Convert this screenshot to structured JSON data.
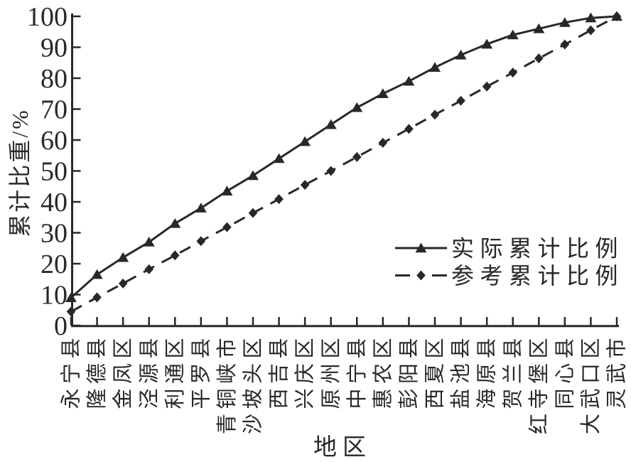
{
  "figure": {
    "background": "#ffffff",
    "ink": "#282828"
  },
  "chart_data": {
    "type": "line",
    "title": "",
    "xlabel": "地区",
    "ylabel": "累计比重/%",
    "ylim": [
      0,
      100
    ],
    "yticks": [
      0,
      10,
      20,
      30,
      40,
      50,
      60,
      70,
      80,
      90,
      100
    ],
    "grid": false,
    "legend_position": "inside-right-middle",
    "categories": [
      "永宁县",
      "隆德县",
      "金凤区",
      "泾源县",
      "利通区",
      "平罗县",
      "青铜峡市",
      "沙坡头区",
      "西吉县",
      "兴庆区",
      "原州区",
      "中宁县",
      "惠农区",
      "彭阳县",
      "西夏区",
      "盐池县",
      "海原县",
      "贺兰县",
      "红寺堡区",
      "同心县",
      "大武口区",
      "灵武市"
    ],
    "series": [
      {
        "name": "实际累计比例",
        "marker": "triangle",
        "line_style": "solid",
        "values": [
          9,
          16.5,
          22,
          27,
          33,
          38,
          43.5,
          48.5,
          54,
          59.5,
          65,
          70.5,
          75,
          79,
          83.5,
          87.5,
          91,
          94,
          96,
          98,
          99.5,
          100
        ]
      },
      {
        "name": "参考累计比例",
        "marker": "diamond",
        "line_style": "dashed",
        "values": [
          4.5,
          9.1,
          13.6,
          18.2,
          22.7,
          27.3,
          31.8,
          36.4,
          40.9,
          45.5,
          50,
          54.5,
          59.1,
          63.6,
          68.2,
          72.7,
          77.3,
          81.8,
          86.4,
          90.9,
          95.5,
          100
        ]
      }
    ]
  }
}
